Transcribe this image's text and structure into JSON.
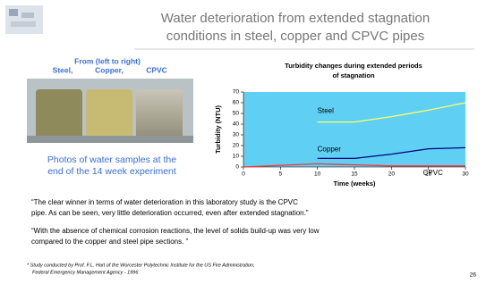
{
  "title": [
    "Water deterioration from extended stagnation",
    "conditions in steel, copper and CPVC pipes"
  ],
  "photo_caption": {
    "heading": "From (left to right)",
    "labels": [
      "Steel,",
      "Copper,",
      "CPVC"
    ]
  },
  "photo_note": [
    "Photos of water samples at the",
    "end of the 14 week experiment"
  ],
  "chart_data": {
    "type": "line",
    "title": [
      "Turbidity changes during extended periods",
      "of stagnation"
    ],
    "x_label": "Time (weeks)",
    "y_label": "Turbidity (NTU)",
    "x": [
      0,
      10,
      15,
      20,
      25,
      30
    ],
    "series": [
      {
        "name": "Steel",
        "color": "#ffff66",
        "values": [
          null,
          42,
          42,
          47,
          53,
          60
        ]
      },
      {
        "name": "Copper",
        "color": "#000080",
        "values": [
          null,
          8,
          8,
          12,
          17,
          18
        ]
      },
      {
        "name": "CPVC",
        "color": "#ff3333",
        "values": [
          0,
          3,
          2,
          1,
          1,
          1
        ]
      }
    ],
    "xlim": [
      0,
      30
    ],
    "xticks": [
      0,
      5,
      10,
      15,
      20,
      25,
      30
    ],
    "ylim": [
      0,
      70
    ],
    "yticks": [
      0,
      10,
      20,
      30,
      40,
      50,
      60,
      70
    ],
    "plot_background": "#5fd0f3"
  },
  "quotes": [
    [
      "“The clear winner in terms of water deterioration in this laboratory study is the CPVC",
      "pipe.  As can be seen, very little deterioration occurred, even after extended stagnation.”"
    ],
    [
      "“With the absence of chemical corrosion reactions, the level of solids build-up was very low",
      "compared to the copper and steel pipe sections. ”"
    ]
  ],
  "footnote": [
    "* Study conducted by Prof. F.L. Hart of the Worcester Polytechnic Institute for the US Fire Administration,",
    "Federal Emergency Management Agency - 1996"
  ],
  "page_number": "26"
}
